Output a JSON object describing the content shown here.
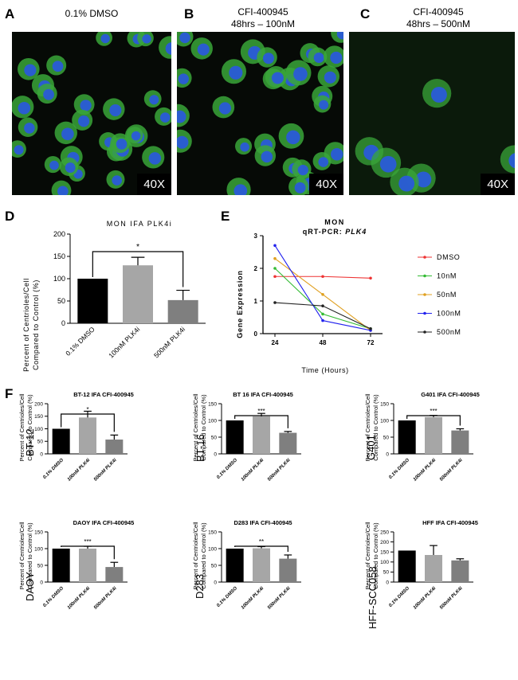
{
  "panel_letters": {
    "a": "A",
    "b": "B",
    "c": "C",
    "d": "D",
    "e": "E",
    "f": "F"
  },
  "micrographs": [
    {
      "title": "0.1% DMSO",
      "subtitle": "",
      "magnification": "40X"
    },
    {
      "title": "CFI-400945",
      "subtitle": "48hrs – 100nM",
      "magnification": "40X"
    },
    {
      "title": "CFI-400945",
      "subtitle": "48hrs – 500nM",
      "magnification": "40X"
    }
  ],
  "panel_d": {
    "title": "MON IFA PLK4i",
    "ylabel_line1": "Percent of Centrioles/Cell",
    "ylabel_line2": "Compared to Control (%)",
    "categories": [
      "0.1% DMSO",
      "100nM PLK4i",
      "500nM PLK4i"
    ],
    "yticks": [
      "0",
      "50",
      "100",
      "150",
      "200"
    ],
    "significance": "*"
  },
  "panel_e": {
    "title_line1": "MON",
    "title_line2_prefix": "qRT-PCR: ",
    "title_line2_gene": "PLK4",
    "ylabel": "Gene Expression",
    "xlabel": "Time (Hours)",
    "xticks": [
      "24",
      "48",
      "72"
    ],
    "yticks": [
      "0",
      "1",
      "2",
      "3"
    ],
    "legend": [
      "DMSO",
      "10nM",
      "50nM",
      "100nM",
      "500nM"
    ]
  },
  "panel_f": {
    "ylabel_line1": "Percent of Centrioles/Cell",
    "ylabel_line2": "Compared to Control (%)",
    "categories": [
      "0.1% DMSO",
      "100nM PLK4i",
      "500nM PLK4i"
    ],
    "charts": [
      {
        "rowlabel": "BT-12",
        "title": "BT-12 IFA CFI-400945",
        "yticks": [
          "0",
          "50",
          "100",
          "150",
          "200"
        ],
        "sig": "*"
      },
      {
        "rowlabel": "BT-16",
        "title": "BT 16 IFA CFI-400945",
        "yticks": [
          "0",
          "50",
          "100",
          "150"
        ],
        "sig": "***"
      },
      {
        "rowlabel": "G401",
        "title": "G401 IFA CFI-400945",
        "yticks": [
          "0",
          "50",
          "100",
          "150"
        ],
        "sig": "***"
      },
      {
        "rowlabel": "DAOY",
        "title": "DAOY IFA CFI-400945",
        "yticks": [
          "0",
          "50",
          "100",
          "150"
        ],
        "sig": "***"
      },
      {
        "rowlabel": "D283",
        "title": "D283 IFA CFI-400945",
        "yticks": [
          "0",
          "50",
          "100",
          "150"
        ],
        "sig": "**"
      },
      {
        "rowlabel": "HFF-SCC058",
        "title": "HFF IFA CFI-400945",
        "yticks": [
          "0",
          "50",
          "100",
          "150",
          "200",
          "250"
        ],
        "sig": ""
      }
    ]
  },
  "colors": {
    "black": "#000000",
    "light_gray": "#a6a6a6",
    "mid_gray": "#7f7f7f",
    "dmso": "#ee3333",
    "n10": "#33bb33",
    "n50": "#e0a020",
    "n100": "#2222ee",
    "n500": "#222222"
  },
  "chart_data": [
    {
      "type": "bar",
      "title": "MON IFA PLK4i",
      "categories": [
        "0.1% DMSO",
        "100nM PLK4i",
        "500nM PLK4i"
      ],
      "values": [
        100,
        130,
        52
      ],
      "errors": [
        0,
        18,
        22
      ],
      "ylim": [
        0,
        200
      ],
      "ylabel": "Percent of Centrioles/Cell Compared to Control (%)"
    },
    {
      "type": "line",
      "title": "MON qRT-PCR: PLK4",
      "x": [
        24,
        48,
        72
      ],
      "ylim": [
        0,
        3
      ],
      "xlabel": "Time (Hours)",
      "ylabel": "Gene Expression",
      "legend_position": "right",
      "series": [
        {
          "name": "DMSO",
          "values": [
            1.75,
            1.75,
            1.7
          ],
          "color": "#ee3333"
        },
        {
          "name": "10nM",
          "values": [
            2.0,
            0.6,
            0.15
          ],
          "color": "#33bb33"
        },
        {
          "name": "50nM",
          "values": [
            2.3,
            1.2,
            0.1
          ],
          "color": "#e0a020"
        },
        {
          "name": "100nM",
          "values": [
            2.7,
            0.4,
            0.1
          ],
          "color": "#2222ee"
        },
        {
          "name": "500nM",
          "values": [
            0.95,
            0.85,
            0.15
          ],
          "color": "#222222"
        }
      ]
    },
    {
      "type": "bar",
      "title": "BT-12 IFA CFI-400945",
      "categories": [
        "0.1% DMSO",
        "100nM PLK4i",
        "500nM PLK4i"
      ],
      "values": [
        100,
        145,
        57
      ],
      "errors": [
        0,
        25,
        18
      ],
      "ylim": [
        0,
        200
      ]
    },
    {
      "type": "bar",
      "title": "BT 16 IFA CFI-400945",
      "categories": [
        "0.1% DMSO",
        "100nM PLK4i",
        "500nM PLK4i"
      ],
      "values": [
        100,
        112,
        63
      ],
      "errors": [
        0,
        9,
        4
      ],
      "ylim": [
        0,
        150
      ]
    },
    {
      "type": "bar",
      "title": "G401 IFA CFI-400945",
      "categories": [
        "0.1% DMSO",
        "100nM PLK4i",
        "500nM PLK4i"
      ],
      "values": [
        100,
        110,
        70
      ],
      "errors": [
        0,
        5,
        5
      ],
      "ylim": [
        0,
        150
      ]
    },
    {
      "type": "bar",
      "title": "DAOY IFA CFI-400945",
      "categories": [
        "0.1% DMSO",
        "100nM PLK4i",
        "500nM PLK4i"
      ],
      "values": [
        100,
        100,
        45
      ],
      "errors": [
        0,
        7,
        14
      ],
      "ylim": [
        0,
        150
      ]
    },
    {
      "type": "bar",
      "title": "D283 IFA CFI-400945",
      "categories": [
        "0.1% DMSO",
        "100nM PLK4i",
        "500nM PLK4i"
      ],
      "values": [
        100,
        101,
        70
      ],
      "errors": [
        0,
        5,
        11
      ],
      "ylim": [
        0,
        150
      ]
    },
    {
      "type": "bar",
      "title": "HFF IFA CFI-400945",
      "categories": [
        "0.1% DMSO",
        "100nM PLK4i",
        "500nM PLK4i"
      ],
      "values": [
        157,
        135,
        108
      ],
      "errors": [
        0,
        47,
        8
      ],
      "ylim": [
        0,
        250
      ]
    }
  ]
}
